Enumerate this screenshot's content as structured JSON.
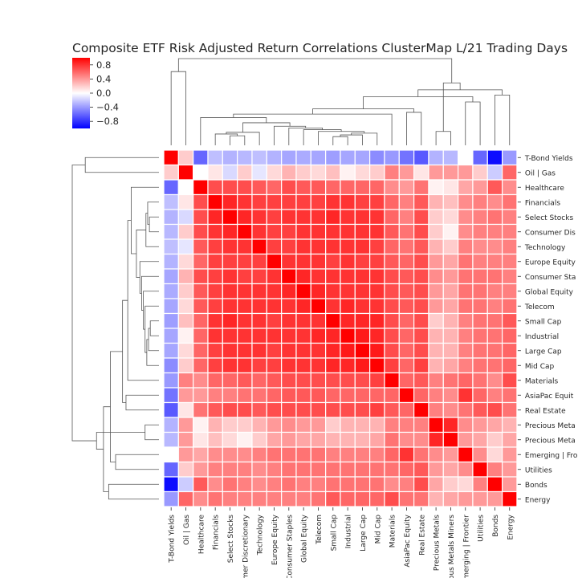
{
  "chart_data": {
    "type": "heatmap",
    "title": "Composite ETF Risk Adjusted Return Correlations ClusterMap L/21 Trading Days",
    "labels": [
      "T-Bond Yields",
      "Oil | Gas",
      "Healthcare",
      "Financials",
      "Select Stocks",
      "Consumer Discretionary",
      "Technology",
      "Europe Equity",
      "Consumer Staples",
      "Global Equity",
      "Telecom",
      "Small Cap",
      "Industrial",
      "Large Cap",
      "Mid Cap",
      "Materials",
      "AsiaPac Equity",
      "Real Estate",
      "Precious Metals",
      "Precious Metals Miners",
      "Emerging | Frontier",
      "Utilities",
      "Bonds",
      "Energy"
    ],
    "row_tick_labels": [
      "T-Bond Yields",
      "Oil | Gas",
      "Healthcare",
      "Financials",
      "Select Stocks",
      "Consumer Dis",
      "Technology",
      "Europe Equity",
      "Consumer Sta",
      "Global Equity",
      "Telecom",
      "Small Cap",
      "Industrial",
      "Large Cap",
      "Mid Cap",
      "Materials",
      "AsiaPac Equit",
      "Real Estate",
      "Precious Meta",
      "Precious Meta",
      "Emerging | Fro",
      "Utilities",
      "Bonds",
      "Energy"
    ],
    "col_tick_labels": [
      "T-Bond Yields",
      "Oil | Gas",
      "Healthcare",
      "Financials",
      "Select Stocks",
      "mer Discretionary",
      "Technology",
      "Europe Equity",
      "Consumer Staples",
      "Global Equity",
      "Telecom",
      "Small Cap",
      "Industrial",
      "Large Cap",
      "Mid Cap",
      "Materials",
      "AsiaPac Equity",
      "Real Estate",
      "Precious Metals",
      "ous Metals Miners",
      "merging | Frontier",
      "Utilities",
      "Bonds",
      "Energy"
    ],
    "colormap": "bwr",
    "colorbar": {
      "vmin": -1.0,
      "vmax": 1.0,
      "ticks": [
        0.8,
        0.4,
        0.0,
        -0.4,
        -0.8
      ],
      "tick_labels": [
        "0.8",
        "0.4",
        "0.0",
        "−0.4",
        "−0.8"
      ]
    },
    "matrix": [
      [
        1.0,
        0.2,
        -0.6,
        -0.25,
        -0.3,
        -0.28,
        -0.25,
        -0.3,
        -0.35,
        -0.33,
        -0.35,
        -0.38,
        -0.35,
        -0.35,
        -0.45,
        -0.4,
        -0.55,
        -0.65,
        -0.3,
        -0.28,
        0.0,
        -0.6,
        -0.95,
        -0.4
      ],
      [
        0.2,
        1.0,
        0.0,
        0.1,
        -0.15,
        0.2,
        -0.1,
        0.15,
        0.3,
        0.2,
        0.15,
        0.25,
        0.05,
        0.15,
        0.2,
        0.5,
        0.4,
        0.1,
        0.4,
        0.4,
        0.4,
        0.2,
        -0.2,
        0.6
      ],
      [
        -0.6,
        0.0,
        1.0,
        0.7,
        0.7,
        0.7,
        0.65,
        0.6,
        0.7,
        0.65,
        0.65,
        0.6,
        0.6,
        0.6,
        0.6,
        0.45,
        0.4,
        0.55,
        0.05,
        0.1,
        0.35,
        0.4,
        0.65,
        0.45
      ],
      [
        -0.25,
        0.1,
        0.7,
        1.0,
        0.85,
        0.8,
        0.75,
        0.75,
        0.75,
        0.75,
        0.75,
        0.8,
        0.8,
        0.75,
        0.75,
        0.6,
        0.5,
        0.65,
        0.3,
        0.25,
        0.45,
        0.5,
        0.45,
        0.55
      ],
      [
        -0.3,
        -0.15,
        0.7,
        0.85,
        1.0,
        0.85,
        0.8,
        0.75,
        0.8,
        0.8,
        0.8,
        0.85,
        0.8,
        0.8,
        0.8,
        0.6,
        0.5,
        0.7,
        0.2,
        0.15,
        0.45,
        0.5,
        0.55,
        0.5
      ],
      [
        -0.28,
        0.2,
        0.7,
        0.8,
        0.85,
        1.0,
        0.8,
        0.75,
        0.75,
        0.8,
        0.8,
        0.8,
        0.8,
        0.8,
        0.8,
        0.65,
        0.55,
        0.7,
        0.2,
        0.05,
        0.45,
        0.5,
        0.5,
        0.5
      ],
      [
        -0.25,
        -0.1,
        0.65,
        0.75,
        0.8,
        0.8,
        1.0,
        0.75,
        0.75,
        0.8,
        0.8,
        0.8,
        0.8,
        0.8,
        0.75,
        0.6,
        0.55,
        0.65,
        0.3,
        0.2,
        0.5,
        0.45,
        0.45,
        0.5
      ],
      [
        -0.3,
        0.15,
        0.6,
        0.75,
        0.75,
        0.75,
        0.75,
        1.0,
        0.8,
        0.8,
        0.8,
        0.75,
        0.8,
        0.75,
        0.75,
        0.65,
        0.6,
        0.7,
        0.4,
        0.35,
        0.55,
        0.5,
        0.5,
        0.5
      ],
      [
        -0.35,
        0.3,
        0.7,
        0.75,
        0.8,
        0.75,
        0.75,
        0.8,
        1.0,
        0.85,
        0.8,
        0.8,
        0.8,
        0.8,
        0.8,
        0.7,
        0.65,
        0.7,
        0.45,
        0.4,
        0.55,
        0.55,
        0.55,
        0.5
      ],
      [
        -0.33,
        0.2,
        0.65,
        0.75,
        0.8,
        0.8,
        0.8,
        0.8,
        0.85,
        1.0,
        0.85,
        0.8,
        0.8,
        0.8,
        0.8,
        0.7,
        0.65,
        0.7,
        0.4,
        0.35,
        0.55,
        0.55,
        0.5,
        0.5
      ],
      [
        -0.35,
        0.15,
        0.65,
        0.75,
        0.8,
        0.8,
        0.8,
        0.8,
        0.8,
        0.85,
        1.0,
        0.8,
        0.85,
        0.8,
        0.8,
        0.7,
        0.65,
        0.7,
        0.4,
        0.35,
        0.55,
        0.55,
        0.5,
        0.55
      ],
      [
        -0.38,
        0.25,
        0.6,
        0.8,
        0.85,
        0.8,
        0.8,
        0.75,
        0.8,
        0.8,
        0.8,
        1.0,
        0.85,
        0.85,
        0.85,
        0.7,
        0.6,
        0.7,
        0.2,
        0.3,
        0.5,
        0.55,
        0.55,
        0.65
      ],
      [
        -0.35,
        0.05,
        0.6,
        0.8,
        0.8,
        0.8,
        0.8,
        0.8,
        0.8,
        0.8,
        0.85,
        0.85,
        1.0,
        0.9,
        0.85,
        0.7,
        0.6,
        0.7,
        0.3,
        0.3,
        0.5,
        0.55,
        0.55,
        0.6
      ],
      [
        -0.35,
        0.15,
        0.6,
        0.75,
        0.8,
        0.8,
        0.8,
        0.75,
        0.8,
        0.8,
        0.8,
        0.85,
        0.9,
        1.0,
        0.9,
        0.7,
        0.6,
        0.7,
        0.3,
        0.3,
        0.5,
        0.55,
        0.55,
        0.6
      ],
      [
        -0.45,
        0.2,
        0.6,
        0.75,
        0.8,
        0.8,
        0.75,
        0.75,
        0.8,
        0.8,
        0.8,
        0.85,
        0.85,
        0.9,
        1.0,
        0.75,
        0.6,
        0.75,
        0.3,
        0.35,
        0.5,
        0.55,
        0.55,
        0.6
      ],
      [
        -0.4,
        0.5,
        0.45,
        0.6,
        0.6,
        0.65,
        0.6,
        0.65,
        0.7,
        0.7,
        0.7,
        0.7,
        0.7,
        0.7,
        0.75,
        1.0,
        0.6,
        0.65,
        0.5,
        0.55,
        0.6,
        0.55,
        0.45,
        0.7
      ],
      [
        -0.55,
        0.4,
        0.4,
        0.5,
        0.5,
        0.55,
        0.55,
        0.6,
        0.65,
        0.65,
        0.65,
        0.6,
        0.6,
        0.6,
        0.6,
        0.6,
        1.0,
        0.6,
        0.5,
        0.45,
        0.8,
        0.6,
        0.5,
        0.55
      ],
      [
        -0.65,
        0.1,
        0.55,
        0.65,
        0.7,
        0.7,
        0.65,
        0.7,
        0.7,
        0.7,
        0.7,
        0.7,
        0.7,
        0.7,
        0.75,
        0.65,
        0.6,
        1.0,
        0.5,
        0.45,
        0.55,
        0.65,
        0.7,
        0.55
      ],
      [
        -0.3,
        0.4,
        0.05,
        0.3,
        0.2,
        0.2,
        0.3,
        0.4,
        0.45,
        0.4,
        0.4,
        0.2,
        0.3,
        0.3,
        0.3,
        0.5,
        0.5,
        0.5,
        1.0,
        0.85,
        0.45,
        0.4,
        0.35,
        0.3
      ],
      [
        -0.28,
        0.4,
        0.1,
        0.25,
        0.15,
        0.05,
        0.2,
        0.35,
        0.4,
        0.35,
        0.35,
        0.3,
        0.3,
        0.3,
        0.35,
        0.55,
        0.45,
        0.45,
        0.85,
        1.0,
        0.4,
        0.35,
        0.2,
        0.35
      ],
      [
        0.0,
        0.4,
        0.35,
        0.45,
        0.45,
        0.45,
        0.5,
        0.55,
        0.55,
        0.55,
        0.55,
        0.5,
        0.5,
        0.5,
        0.5,
        0.6,
        0.8,
        0.55,
        0.45,
        0.4,
        1.0,
        0.45,
        0.15,
        0.4
      ],
      [
        -0.6,
        0.2,
        0.4,
        0.5,
        0.5,
        0.5,
        0.45,
        0.5,
        0.55,
        0.55,
        0.55,
        0.55,
        0.55,
        0.55,
        0.55,
        0.55,
        0.6,
        0.65,
        0.4,
        0.35,
        0.45,
        1.0,
        0.5,
        0.4
      ],
      [
        -0.95,
        -0.2,
        0.65,
        0.45,
        0.55,
        0.5,
        0.45,
        0.5,
        0.55,
        0.5,
        0.5,
        0.55,
        0.55,
        0.55,
        0.55,
        0.45,
        0.5,
        0.7,
        0.35,
        0.2,
        0.15,
        0.5,
        1.0,
        0.4
      ],
      [
        -0.4,
        0.6,
        0.45,
        0.55,
        0.5,
        0.5,
        0.5,
        0.5,
        0.5,
        0.5,
        0.55,
        0.65,
        0.6,
        0.6,
        0.6,
        0.7,
        0.55,
        0.55,
        0.3,
        0.35,
        0.4,
        0.4,
        0.4,
        1.0
      ]
    ]
  }
}
